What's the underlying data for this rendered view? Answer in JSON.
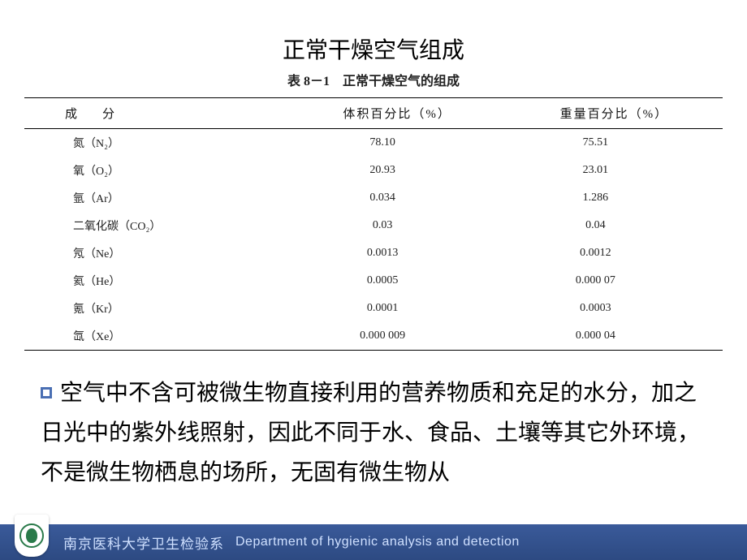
{
  "title": "正常干燥空气组成",
  "table": {
    "caption": "表 8－1　正常干燥空气的组成",
    "columns": [
      "成　分",
      "体积百分比（%）",
      "重量百分比（%）"
    ],
    "rows": [
      [
        "氮（N₂）",
        "78.10",
        "75.51"
      ],
      [
        "氧（O₂）",
        "20.93",
        "23.01"
      ],
      [
        "氩（Ar）",
        "0.034",
        "1.286"
      ],
      [
        "二氧化碳（CO₂）",
        "0.03",
        "0.04"
      ],
      [
        "氖（Ne）",
        "0.0013",
        "0.0012"
      ],
      [
        "氦（He）",
        "0.0005",
        "0.000 07"
      ],
      [
        "氪（Kr）",
        "0.0001",
        "0.0003"
      ],
      [
        "氙（Xe）",
        "0.000 009",
        "0.000 04"
      ]
    ]
  },
  "paragraph": "空气中不含可被微生物直接利用的营养物质和充足的水分，加之日光中的紫外线照射，因此不同于水、食品、土壤等其它外环境，不是微生物栖息的场所，无固有微生物从",
  "footer": {
    "dept_cn": "南京医科大学卫生检验系",
    "dept_en": "Department of hygienic analysis and detection"
  },
  "colors": {
    "footer_bg_top": "#3a5a9a",
    "footer_bg_bottom": "#2d4a82",
    "footer_text": "#cfe0ff",
    "bullet_border": "#4a6fb3",
    "logo_green": "#2a7a4a",
    "page_bg": "#ffffff",
    "text": "#000000"
  }
}
